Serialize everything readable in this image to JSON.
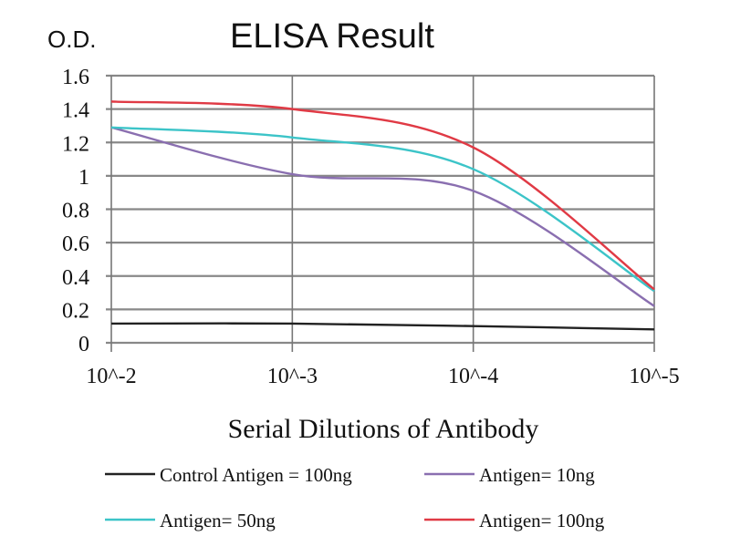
{
  "chart_data": {
    "type": "line",
    "title": "ELISA Result",
    "ylabel": "O.D.",
    "xlabel": "Serial Dilutions of Antibody",
    "categories": [
      "10^-2",
      "10^-3",
      "10^-4",
      "10^-5"
    ],
    "ylim": [
      0,
      1.6
    ],
    "yticks": [
      "0",
      "0.2",
      "0.4",
      "0.6",
      "0.8",
      "1",
      "1.2",
      "1.4",
      "1.6"
    ],
    "ytick_values": [
      0,
      0.2,
      0.4,
      0.6,
      0.8,
      1,
      1.2,
      1.4,
      1.6
    ],
    "grid": true,
    "legend_position": "bottom",
    "series": [
      {
        "name": "Control Antigen = 100ng",
        "color": "#222222",
        "values": [
          0.115,
          0.115,
          0.1,
          0.08
        ]
      },
      {
        "name": "Antigen= 10ng",
        "color": "#8a6fb0",
        "values": [
          1.29,
          1.01,
          0.91,
          0.22
        ]
      },
      {
        "name": "Antigen= 50ng",
        "color": "#3cc4c8",
        "values": [
          1.29,
          1.23,
          1.04,
          0.31
        ]
      },
      {
        "name": "Antigen= 100ng",
        "color": "#e03a45",
        "values": [
          1.445,
          1.4,
          1.17,
          0.32
        ]
      }
    ]
  }
}
